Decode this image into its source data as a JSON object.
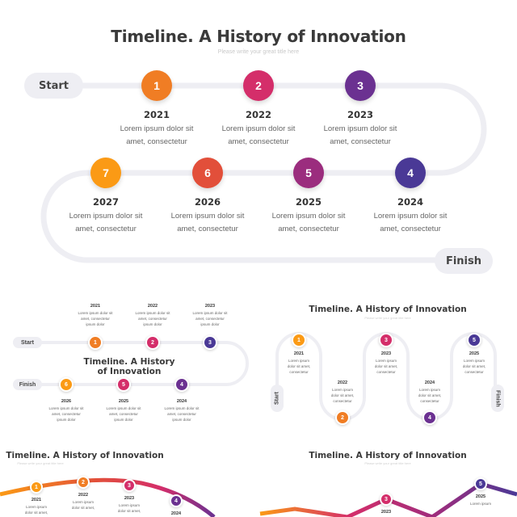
{
  "main": {
    "title": "Timeline. A History of Innovation",
    "subtitle": "Please write your great title here",
    "start_label": "Start",
    "finish_label": "Finish",
    "items": [
      {
        "num": "1",
        "year": "2021",
        "line1": "Lorem ipsum dolor sit",
        "line2": "amet, consectetur",
        "color": "#f07d24"
      },
      {
        "num": "2",
        "year": "2022",
        "line1": "Lorem ipsum dolor sit",
        "line2": "amet, consectetur",
        "color": "#d42e6a"
      },
      {
        "num": "3",
        "year": "2023",
        "line1": "Lorem ipsum dolor sit",
        "line2": "amet, consectetur",
        "color": "#6b3191"
      },
      {
        "num": "4",
        "year": "2024",
        "line1": "Lorem ipsum dolor sit",
        "line2": "amet, consectetur",
        "color": "#4a3996"
      },
      {
        "num": "5",
        "year": "2025",
        "line1": "Lorem ipsum dolor sit",
        "line2": "amet, consectetur",
        "color": "#9b2d7e"
      },
      {
        "num": "6",
        "year": "2026",
        "line1": "Lorem ipsum dolor sit",
        "line2": "amet, consectetur",
        "color": "#e24f3a"
      },
      {
        "num": "7",
        "year": "2027",
        "line1": "Lorem ipsum dolor sit",
        "line2": "amet, consectetur",
        "color": "#fb9a15"
      }
    ]
  },
  "thumb1": {
    "title_line1": "Timeline. A History",
    "title_line2": "of Innovation",
    "start_label": "Start",
    "finish_label": "Finish",
    "items": [
      {
        "num": "1",
        "year": "2021",
        "l1": "Lorem ipsum dolor sit",
        "l2": "amet, consectetur",
        "l3": "ipsum dolor",
        "color": "#f07d24"
      },
      {
        "num": "2",
        "year": "2022",
        "l1": "Lorem ipsum dolor sit",
        "l2": "amet, consectetur",
        "l3": "ipsum dolor",
        "color": "#d42e6a"
      },
      {
        "num": "3",
        "year": "2023",
        "l1": "Lorem ipsum dolor sit",
        "l2": "amet, consectetur",
        "l3": "ipsum dolor",
        "color": "#4a3996"
      },
      {
        "num": "4",
        "year": "2024",
        "l1": "Lorem ipsum dolor sit",
        "l2": "amet, consectetur",
        "l3": "ipsum dolor",
        "color": "#6b3191"
      },
      {
        "num": "5",
        "year": "2025",
        "l1": "Lorem ipsum dolor sit",
        "l2": "amet, consectetur",
        "l3": "ipsum dolor",
        "color": "#d42e6a"
      },
      {
        "num": "6",
        "year": "2026",
        "l1": "Lorem ipsum dolor sit",
        "l2": "amet, consectetur",
        "l3": "ipsum dolor",
        "color": "#fb9a15"
      }
    ]
  },
  "thumb2": {
    "title": "Timeline. A History of Innovation",
    "subtitle": "Please write your great title here",
    "start_label": "Start",
    "finish_label": "Finish",
    "items": [
      {
        "num": "1",
        "year": "2021",
        "l1": "Lorem ipsum",
        "l2": "dolor sit amet,",
        "l3": "consectetur",
        "color": "#fb9a15"
      },
      {
        "num": "2",
        "year": "2022",
        "l1": "Lorem ipsum",
        "l2": "dolor sit amet,",
        "l3": "consectetur",
        "color": "#f07d24"
      },
      {
        "num": "3",
        "year": "2023",
        "l1": "Lorem ipsum",
        "l2": "dolor sit amet,",
        "l3": "consectetur",
        "color": "#d42e6a"
      },
      {
        "num": "4",
        "year": "2024",
        "l1": "Lorem ipsum",
        "l2": "dolor sit amet,",
        "l3": "consectetur",
        "color": "#6b3191"
      },
      {
        "num": "5",
        "year": "2025",
        "l1": "Lorem ipsum",
        "l2": "dolor sit amet,",
        "l3": "consectetur",
        "color": "#4a3996"
      }
    ]
  },
  "thumb3": {
    "title": "Timeline. A History of Innovation",
    "subtitle": "Please write your great title here",
    "items": [
      {
        "num": "1",
        "year": "2021",
        "l1": "Lorem ipsum",
        "l2": "dolor sit amet,",
        "color": "#fb9a15"
      },
      {
        "num": "2",
        "year": "2022",
        "l1": "Lorem ipsum",
        "l2": "dolor sit amet,",
        "color": "#f07d24"
      },
      {
        "num": "3",
        "year": "2023",
        "l1": "Lorem ipsum",
        "l2": "dolor sit amet,",
        "color": "#d42e6a"
      },
      {
        "num": "4",
        "year": "2024",
        "color": "#6b3191"
      }
    ]
  },
  "thumb4": {
    "title": "Timeline. A History of Innovation",
    "subtitle": "Please write your great title here",
    "items": [
      {
        "num": "3",
        "year": "2023",
        "color": "#d42e6a"
      },
      {
        "num": "5",
        "year": "2025",
        "l1": "Lorem ipsum",
        "color": "#4a3996"
      }
    ]
  }
}
